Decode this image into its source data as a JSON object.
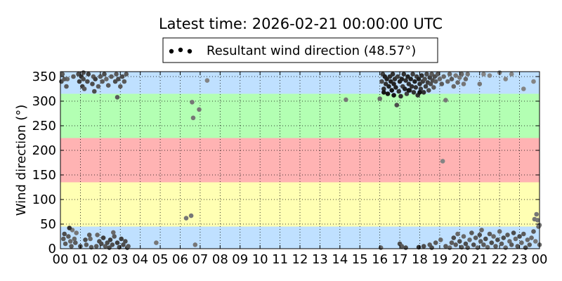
{
  "chart_data": {
    "type": "scatter",
    "title": "Latest time: 2026-02-21 00:00:00 UTC",
    "ylabel": "Wind direction (°)",
    "xlabel": "",
    "xlim": [
      0,
      24
    ],
    "ylim": [
      0,
      360
    ],
    "x_tick_labels": [
      "00",
      "01",
      "02",
      "03",
      "04",
      "05",
      "06",
      "07",
      "08",
      "09",
      "10",
      "11",
      "12",
      "13",
      "14",
      "15",
      "16",
      "17",
      "18",
      "19",
      "20",
      "21",
      "22",
      "23",
      "00"
    ],
    "y_ticks": [
      0,
      50,
      100,
      150,
      200,
      250,
      300,
      350
    ],
    "grid": true,
    "legend": {
      "position": "top-center",
      "label": "Resultant wind direction (48.57°)"
    },
    "bands": [
      {
        "from": 0,
        "to": 45,
        "color": "#bfe0ff"
      },
      {
        "from": 45,
        "to": 135,
        "color": "#ffffb3"
      },
      {
        "from": 135,
        "to": 225,
        "color": "#ffb3b3"
      },
      {
        "from": 225,
        "to": 315,
        "color": "#b3ffb3"
      },
      {
        "from": 315,
        "to": 360,
        "color": "#bfe0ff"
      }
    ],
    "series": [
      {
        "points": [
          [
            0.05,
            340,
            0.6
          ],
          [
            0.1,
            355,
            0.5
          ],
          [
            0.15,
            20,
            0.5
          ],
          [
            0.2,
            30,
            0.6
          ],
          [
            0.25,
            10,
            0.5
          ],
          [
            0.3,
            330,
            0.5
          ],
          [
            0.35,
            345,
            0.4
          ],
          [
            0.4,
            25,
            0.5
          ],
          [
            0.5,
            15,
            0.4
          ],
          [
            0.55,
            5,
            0.5
          ],
          [
            0.6,
            38,
            0.3
          ],
          [
            0.65,
            350,
            0.5
          ],
          [
            0.7,
            20,
            0.4
          ],
          [
            0.75,
            12,
            0.5
          ],
          [
            0.8,
            32,
            0.3
          ],
          [
            0.9,
            355,
            0.6
          ],
          [
            0.95,
            340,
            0.7
          ],
          [
            1.0,
            5,
            0.6
          ],
          [
            1.05,
            350,
            0.8
          ],
          [
            1.1,
            330,
            0.7
          ],
          [
            1.15,
            345,
            0.6
          ],
          [
            1.2,
            325,
            0.5
          ],
          [
            1.25,
            18,
            0.6
          ],
          [
            1.3,
            8,
            0.5
          ],
          [
            1.35,
            340,
            0.6
          ],
          [
            1.4,
            355,
            0.7
          ],
          [
            1.5,
            20,
            0.4
          ],
          [
            1.55,
            3,
            0.5
          ],
          [
            1.6,
            335,
            0.6
          ],
          [
            1.65,
            350,
            0.5
          ],
          [
            1.7,
            320,
            0.6
          ],
          [
            1.75,
            345,
            0.7
          ],
          [
            1.8,
            5,
            0.5
          ],
          [
            1.85,
            28,
            0.4
          ],
          [
            1.9,
            330,
            0.5
          ],
          [
            1.95,
            15,
            0.6
          ],
          [
            2.0,
            350,
            0.5
          ],
          [
            2.05,
            10,
            0.6
          ],
          [
            2.1,
            340,
            0.5
          ],
          [
            2.15,
            22,
            0.7
          ],
          [
            2.2,
            355,
            0.6
          ],
          [
            2.25,
            5,
            0.5
          ],
          [
            2.3,
            345,
            0.4
          ],
          [
            2.35,
            12,
            0.6
          ],
          [
            2.4,
            332,
            0.5
          ],
          [
            2.45,
            2,
            0.6
          ],
          [
            2.5,
            18,
            0.7
          ],
          [
            2.55,
            350,
            0.5
          ],
          [
            2.6,
            8,
            0.6
          ],
          [
            2.7,
            25,
            0.5
          ],
          [
            2.75,
            340,
            0.6
          ],
          [
            2.8,
            355,
            0.5
          ],
          [
            2.85,
            12,
            0.7
          ],
          [
            2.9,
            345,
            0.6
          ],
          [
            2.95,
            3,
            0.6
          ],
          [
            3.0,
            330,
            0.5
          ],
          [
            3.05,
            20,
            0.7
          ],
          [
            3.1,
            350,
            0.6
          ],
          [
            3.15,
            8,
            0.6
          ],
          [
            3.2,
            340,
            0.5
          ],
          [
            3.25,
            15,
            0.6
          ],
          [
            3.3,
            355,
            0.5
          ],
          [
            3.35,
            2,
            0.7
          ],
          [
            0.45,
            42,
            0.8
          ],
          [
            1.45,
            28,
            0.5
          ],
          [
            2.65,
            33,
            0.4
          ],
          [
            2.85,
            308,
            0.5
          ],
          [
            3.4,
            5,
            0.5
          ],
          [
            0.2,
            345,
            0.5
          ],
          [
            1.15,
            358,
            0.6
          ],
          [
            4.8,
            12,
            0.3
          ],
          [
            6.3,
            62,
            0.3
          ],
          [
            6.55,
            67,
            0.3
          ],
          [
            6.6,
            298,
            0.3
          ],
          [
            6.65,
            266,
            0.3
          ],
          [
            6.75,
            8,
            0.3
          ],
          [
            6.95,
            283,
            0.3
          ],
          [
            7.35,
            342,
            0.2
          ],
          [
            14.3,
            303,
            0.3
          ],
          [
            16.0,
            305,
            0.4
          ],
          [
            16.05,
            2,
            0.4
          ],
          [
            16.1,
            340,
            0.6
          ],
          [
            16.15,
            355,
            0.7
          ],
          [
            16.2,
            325,
            0.8
          ],
          [
            16.25,
            350,
            0.9
          ],
          [
            16.3,
            335,
            0.8
          ],
          [
            16.35,
            345,
            0.9
          ],
          [
            16.4,
            315,
            1.0
          ],
          [
            16.45,
            330,
            0.9
          ],
          [
            16.5,
            350,
            0.8
          ],
          [
            16.55,
            340,
            0.9
          ],
          [
            16.6,
            322,
            1.0
          ],
          [
            16.65,
            355,
            0.8
          ],
          [
            16.7,
            335,
            0.9
          ],
          [
            16.75,
            345,
            0.8
          ],
          [
            16.8,
            328,
            0.9
          ],
          [
            16.85,
            292,
            0.6
          ],
          [
            16.9,
            350,
            0.7
          ],
          [
            16.95,
            320,
            0.8
          ],
          [
            17.0,
            340,
            0.9
          ],
          [
            17.05,
            310,
            0.8
          ],
          [
            17.1,
            345,
            0.9
          ],
          [
            17.15,
            330,
            0.7
          ],
          [
            17.2,
            355,
            0.8
          ],
          [
            17.25,
            325,
            0.9
          ],
          [
            17.3,
            342,
            0.8
          ],
          [
            17.35,
            315,
            0.7
          ],
          [
            17.4,
            350,
            0.9
          ],
          [
            17.45,
            335,
            0.8
          ],
          [
            17.5,
            322,
            0.7
          ],
          [
            17.55,
            345,
            0.9
          ],
          [
            17.6,
            330,
            0.8
          ],
          [
            17.65,
            355,
            0.7
          ],
          [
            17.7,
            318,
            0.8
          ],
          [
            17.75,
            340,
            0.9
          ],
          [
            17.8,
            328,
            0.8
          ],
          [
            17.85,
            350,
            0.7
          ],
          [
            17.9,
            312,
            0.8
          ],
          [
            17.95,
            345,
            0.9
          ],
          [
            18.0,
            335,
            0.8
          ],
          [
            18.05,
            325,
            0.7
          ],
          [
            18.1,
            352,
            0.8
          ],
          [
            18.15,
            340,
            0.7
          ],
          [
            18.2,
            318,
            0.8
          ],
          [
            18.25,
            345,
            0.6
          ],
          [
            18.3,
            330,
            0.7
          ],
          [
            18.35,
            355,
            0.6
          ],
          [
            18.4,
            338,
            0.7
          ],
          [
            18.45,
            322,
            0.6
          ],
          [
            18.5,
            348,
            0.7
          ],
          [
            18.55,
            335,
            0.6
          ],
          [
            18.6,
            355,
            0.5
          ],
          [
            18.65,
            342,
            0.6
          ],
          [
            18.7,
            328,
            0.5
          ],
          [
            18.75,
            350,
            0.6
          ],
          [
            18.8,
            340,
            0.5
          ],
          [
            18.9,
            355,
            0.5
          ],
          [
            19.0,
            345,
            0.4
          ],
          [
            19.1,
            335,
            0.5
          ],
          [
            19.2,
            350,
            0.4
          ],
          [
            19.3,
            302,
            0.3
          ],
          [
            19.4,
            340,
            0.4
          ],
          [
            19.5,
            355,
            0.4
          ],
          [
            19.6,
            345,
            0.5
          ],
          [
            19.7,
            330,
            0.4
          ],
          [
            19.8,
            352,
            0.3
          ],
          [
            19.9,
            338,
            0.4
          ],
          [
            20.0,
            348,
            0.3
          ],
          [
            20.1,
            355,
            0.4
          ],
          [
            20.2,
            335,
            0.3
          ],
          [
            20.3,
            345,
            0.4
          ],
          [
            20.4,
            355,
            0.3
          ],
          [
            17.0,
            10,
            0.6
          ],
          [
            17.1,
            5,
            0.5
          ],
          [
            17.3,
            2,
            0.6
          ],
          [
            17.95,
            3,
            0.8
          ],
          [
            18.2,
            5,
            0.6
          ],
          [
            18.5,
            8,
            0.5
          ],
          [
            18.6,
            2,
            0.6
          ],
          [
            18.8,
            12,
            0.5
          ],
          [
            19.15,
            178,
            0.2
          ],
          [
            19.05,
            18,
            0.4
          ],
          [
            19.3,
            5,
            0.5
          ],
          [
            19.5,
            2,
            0.4
          ],
          [
            19.6,
            12,
            0.5
          ],
          [
            19.7,
            22,
            0.6
          ],
          [
            19.8,
            8,
            0.5
          ],
          [
            19.9,
            30,
            0.4
          ],
          [
            20.0,
            15,
            0.6
          ],
          [
            20.1,
            3,
            0.5
          ],
          [
            20.2,
            25,
            0.4
          ],
          [
            20.3,
            10,
            0.6
          ],
          [
            20.4,
            2,
            0.5
          ],
          [
            20.5,
            18,
            0.4
          ],
          [
            20.6,
            32,
            0.5
          ],
          [
            20.7,
            8,
            0.6
          ],
          [
            20.8,
            22,
            0.5
          ],
          [
            20.9,
            2,
            0.4
          ],
          [
            21.0,
            28,
            0.6
          ],
          [
            21.05,
            15,
            0.5
          ],
          [
            21.1,
            38,
            0.4
          ],
          [
            21.2,
            8,
            0.5
          ],
          [
            21.3,
            20,
            0.6
          ],
          [
            21.4,
            3,
            0.4
          ],
          [
            21.5,
            30,
            0.5
          ],
          [
            21.6,
            12,
            0.6
          ],
          [
            21.7,
            25,
            0.4
          ],
          [
            21.8,
            5,
            0.5
          ],
          [
            21.9,
            18,
            0.6
          ],
          [
            22.0,
            35,
            0.4
          ],
          [
            22.1,
            10,
            0.5
          ],
          [
            22.2,
            22,
            0.6
          ],
          [
            22.3,
            2,
            0.4
          ],
          [
            22.4,
            28,
            0.5
          ],
          [
            22.5,
            15,
            0.4
          ],
          [
            22.6,
            8,
            0.5
          ],
          [
            22.7,
            32,
            0.6
          ],
          [
            22.8,
            20,
            0.4
          ],
          [
            22.9,
            5,
            0.5
          ],
          [
            23.0,
            25,
            0.6
          ],
          [
            23.1,
            12,
            0.4
          ],
          [
            23.2,
            30,
            0.5
          ],
          [
            23.3,
            2,
            0.6
          ],
          [
            23.4,
            18,
            0.4
          ],
          [
            23.5,
            8,
            0.5
          ],
          [
            23.6,
            22,
            0.4
          ],
          [
            23.7,
            35,
            0.5
          ],
          [
            23.8,
            15,
            0.3
          ],
          [
            23.85,
            70,
            0.3
          ],
          [
            23.9,
            58,
            0.3
          ],
          [
            23.95,
            45,
            0.4
          ],
          [
            23.75,
            60,
            0.3
          ],
          [
            21.0,
            335,
            0.3
          ],
          [
            21.2,
            355,
            0.2
          ],
          [
            21.5,
            352,
            0.2
          ],
          [
            22.0,
            358,
            0.2
          ],
          [
            22.3,
            345,
            0.2
          ],
          [
            22.6,
            355,
            0.2
          ],
          [
            23.2,
            325,
            0.2
          ],
          [
            23.7,
            340,
            0.2
          ],
          [
            24.0,
            8,
            0.4
          ],
          [
            24.0,
            48,
            0.3
          ],
          [
            16.2,
            318,
            1.0
          ],
          [
            17.45,
            322,
            1.0
          ],
          [
            16.7,
            312,
            1.0
          ],
          [
            18.0,
            318,
            1.0
          ]
        ]
      }
    ]
  }
}
